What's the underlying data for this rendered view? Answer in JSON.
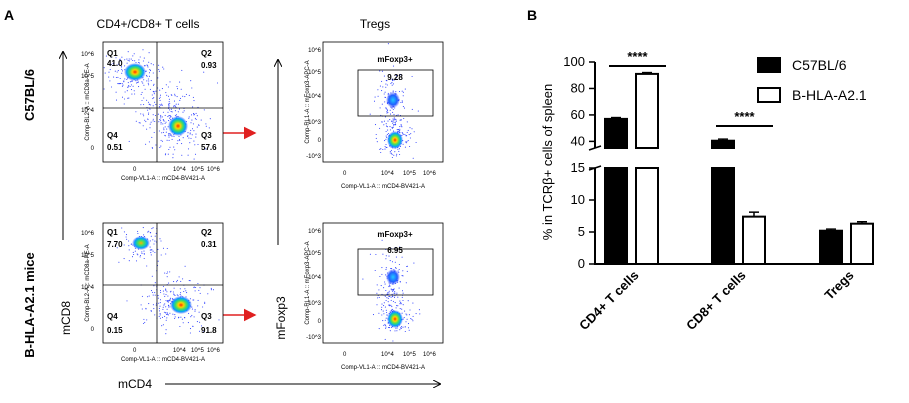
{
  "panel_a": {
    "letter": "A",
    "col_title_left": "CD4+/CD8+ T cells",
    "col_title_right": "Tregs",
    "row_label_top": "C57BL/6",
    "row_label_bottom": "B-HLA-A2.1 mice",
    "axis_y_left": "mCD8",
    "axis_y_right": "mFoxp3",
    "axis_x": "mCD4",
    "cd_plot_xlabel": "Comp-VL1-A :: mCD4-BV421-A",
    "cd_plot_ylabel": "Comp-BL2-A :: mCD8a-PE-A",
    "treg_plot_xlabel": "Comp-VL1-A :: mCD4-BV421-A",
    "treg_plot_ylabel": "Comp-RL1-A :: mFoxp3-APC-A",
    "cd_x_ticks": [
      "0",
      "10^4",
      "10^5",
      "10^6"
    ],
    "cd_y_ticks": [
      "10^6",
      "10^5",
      "10^4",
      "0"
    ],
    "treg_y_ticks": [
      "10^6",
      "10^5",
      "10^4",
      "10^3",
      "0",
      "-10^3"
    ],
    "plots": [
      {
        "type": "cd4cd8",
        "strain": "C57BL/6",
        "quadrants": {
          "Q1": "41.0",
          "Q2": "0.93",
          "Q3": "57.6",
          "Q4": "0.51"
        }
      },
      {
        "type": "treg",
        "strain": "C57BL/6",
        "gate_label": "mFoxp3+",
        "gate_value": "9.28"
      },
      {
        "type": "cd4cd8",
        "strain": "B-HLA-A2.1",
        "quadrants": {
          "Q1": "7.70",
          "Q2": "0.31",
          "Q3": "91.8",
          "Q4": "0.15"
        }
      },
      {
        "type": "treg",
        "strain": "B-HLA-A2.1",
        "gate_label": "mFoxp3+",
        "gate_value": "6.95"
      }
    ],
    "quad_names": {
      "q1": "Q1",
      "q2": "Q2",
      "q3": "Q3",
      "q4": "Q4"
    }
  },
  "chart_data": {
    "letter": "B",
    "type": "bar",
    "ylabel": "% in TCRβ+ cells of spleen",
    "categories": [
      "CD4+ T cells",
      "CD8+ T cells",
      "Tregs"
    ],
    "series": [
      {
        "name": "C57BL/6",
        "values": [
          57.0,
          40.5,
          5.2
        ],
        "errors": [
          1.0,
          1.2,
          0.25
        ],
        "color": "#000000",
        "fill": "solid"
      },
      {
        "name": "B-HLA-A2.1",
        "values": [
          91.0,
          7.4,
          6.3
        ],
        "errors": [
          1.0,
          0.7,
          0.3
        ],
        "color": "#000000",
        "fill": "open"
      }
    ],
    "broken_axis": {
      "lower": [
        0,
        15
      ],
      "upper": [
        35,
        100
      ]
    },
    "y_ticks_lower": [
      0,
      5,
      10,
      15
    ],
    "y_ticks_upper": [
      40,
      60,
      80,
      100
    ],
    "significance": [
      {
        "category": "CD4+ T cells",
        "label": "****"
      },
      {
        "category": "CD8+ T cells",
        "label": "****"
      }
    ],
    "legend_position": "top-right"
  }
}
